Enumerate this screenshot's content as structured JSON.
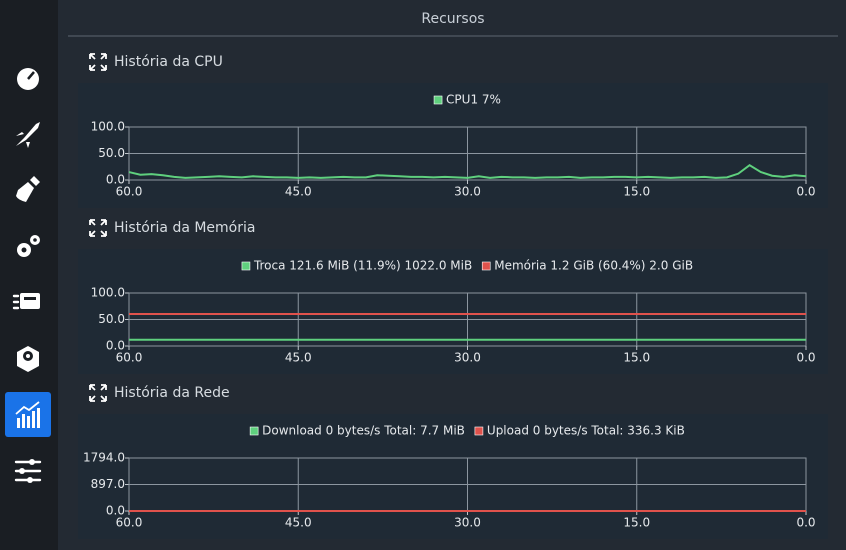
{
  "title": "Recursos",
  "chart_data": [
    {
      "type": "line",
      "title": "História da CPU",
      "x": [
        60,
        59,
        58,
        57,
        56,
        55,
        54,
        53,
        52,
        51,
        50,
        49,
        48,
        47,
        46,
        45,
        44,
        43,
        42,
        41,
        40,
        39,
        38,
        37,
        36,
        35,
        34,
        33,
        32,
        31,
        30,
        29,
        28,
        27,
        26,
        25,
        24,
        23,
        22,
        21,
        20,
        19,
        18,
        17,
        16,
        15,
        14,
        13,
        12,
        11,
        10,
        9,
        8,
        7,
        6,
        5,
        4,
        3,
        2,
        1,
        0
      ],
      "series": [
        {
          "name": "CPU1 7%",
          "color": "#5fd07e",
          "values": [
            15,
            10,
            11,
            9,
            6,
            4,
            5,
            6,
            7,
            6,
            5,
            7,
            6,
            5,
            5,
            4,
            5,
            4,
            5,
            6,
            5,
            5,
            9,
            8,
            7,
            6,
            6,
            5,
            6,
            5,
            4,
            7,
            4,
            6,
            5,
            5,
            4,
            5,
            5,
            6,
            4,
            5,
            5,
            6,
            6,
            5,
            6,
            5,
            4,
            5,
            5,
            6,
            4,
            5,
            12,
            28,
            15,
            8,
            6,
            9,
            7
          ]
        }
      ],
      "xlim": [
        60,
        0
      ],
      "ylim": [
        0,
        100
      ],
      "xticks": [
        {
          "value": 60,
          "label": "60.0"
        },
        {
          "value": 45,
          "label": "45.0"
        },
        {
          "value": 30,
          "label": "30.0"
        },
        {
          "value": 15,
          "label": "15.0"
        },
        {
          "value": 0,
          "label": "0.0"
        }
      ],
      "yticks": [
        {
          "value": 100,
          "label": "100.0"
        },
        {
          "value": 50,
          "label": "50.0"
        },
        {
          "value": 0,
          "label": "0.0"
        }
      ],
      "grid": true
    },
    {
      "type": "line",
      "title": "História da Memória",
      "x": [
        60,
        0
      ],
      "series": [
        {
          "name": "Troca 121.6 MiB (11.9%) 1022.0 MiB",
          "color": "#5fd07e",
          "values": [
            11.9,
            11.9
          ]
        },
        {
          "name": "Memória 1.2 GiB (60.4%) 2.0 GiB",
          "color": "#e0524c",
          "values": [
            60.4,
            60.4
          ]
        }
      ],
      "xlim": [
        60,
        0
      ],
      "ylim": [
        0,
        100
      ],
      "xticks": [
        {
          "value": 60,
          "label": "60.0"
        },
        {
          "value": 45,
          "label": "45.0"
        },
        {
          "value": 30,
          "label": "30.0"
        },
        {
          "value": 15,
          "label": "15.0"
        },
        {
          "value": 0,
          "label": "0.0"
        }
      ],
      "yticks": [
        {
          "value": 100,
          "label": "100.0"
        },
        {
          "value": 50,
          "label": "50.0"
        },
        {
          "value": 0,
          "label": "0.0"
        }
      ],
      "grid": true
    },
    {
      "type": "line",
      "title": "História da Rede",
      "x": [
        60,
        0
      ],
      "series": [
        {
          "name": "Download 0 bytes/s Total: 7.7 MiB",
          "color": "#5fd07e",
          "values": [
            0,
            0
          ]
        },
        {
          "name": "Upload 0 bytes/s Total: 336.3 KiB",
          "color": "#e0524c",
          "values": [
            0,
            0
          ]
        }
      ],
      "xlim": [
        60,
        0
      ],
      "ylim": [
        0,
        1794
      ],
      "xticks": [
        {
          "value": 60,
          "label": "60.0"
        },
        {
          "value": 45,
          "label": "45.0"
        },
        {
          "value": 30,
          "label": "30.0"
        },
        {
          "value": 15,
          "label": "15.0"
        },
        {
          "value": 0,
          "label": "0.0"
        }
      ],
      "yticks": [
        {
          "value": 1794,
          "label": "1794.0"
        },
        {
          "value": 897,
          "label": "897.0"
        },
        {
          "value": 0,
          "label": "0.0"
        }
      ],
      "grid": true
    }
  ]
}
